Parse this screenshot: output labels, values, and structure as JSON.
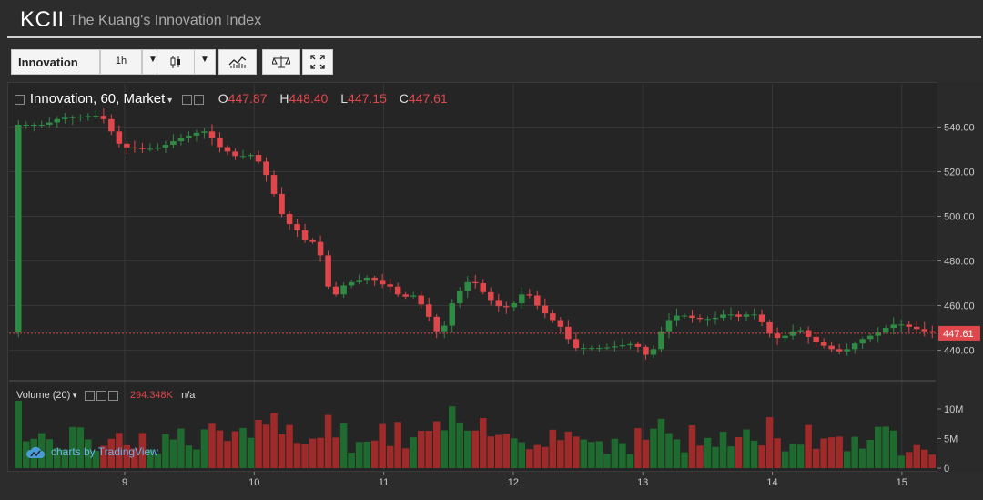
{
  "header": {
    "ticker": "KCII",
    "title": "The Kuang's Innovation Index"
  },
  "toolbar": {
    "symbol": "Innovation",
    "interval": "1h",
    "icons": [
      "candlestick-icon",
      "chevron-down-icon",
      "indicators-icon",
      "compare-icon",
      "fullscreen-icon"
    ]
  },
  "legend": {
    "series": "Innovation, 60, Market",
    "open_label": "O",
    "open": "447.87",
    "high_label": "H",
    "high": "448.40",
    "low_label": "L",
    "low": "447.15",
    "close_label": "C",
    "close": "447.61"
  },
  "volume_legend": {
    "name": "Volume (20)",
    "value": "294.348K",
    "extra": "n/a"
  },
  "branding": {
    "text": "charts by TradingView"
  },
  "colors": {
    "up": "#2e8b44",
    "down": "#e0474c",
    "vol_up": "#1f6b2f",
    "vol_down": "#9e2a2a",
    "background": "#252525"
  },
  "chart_data": {
    "type": "candlestick",
    "price_axis": {
      "ticks": [
        "440.00",
        "460.00",
        "480.00",
        "500.00",
        "520.00",
        "540.00"
      ],
      "ylim": [
        428,
        552
      ],
      "last_label": "447.61"
    },
    "volume_axis": {
      "ticks": [
        "0",
        "5M",
        "10M"
      ],
      "ylim": [
        0,
        12000000
      ]
    },
    "time_axis": {
      "ticks": [
        "9",
        "10",
        "11",
        "12",
        "13",
        "14",
        "15"
      ]
    },
    "last_price": 447.61,
    "series": [
      {
        "name": "price",
        "trend": [
          [
            0,
            541
          ],
          [
            2,
            541
          ],
          [
            4,
            541
          ],
          [
            5,
            543
          ],
          [
            6,
            544
          ],
          [
            10,
            545
          ],
          [
            11,
            545
          ],
          [
            12,
            542
          ],
          [
            13,
            534
          ],
          [
            14,
            531
          ],
          [
            17,
            530
          ],
          [
            19,
            531
          ],
          [
            20,
            533
          ],
          [
            24,
            538
          ],
          [
            25,
            538
          ],
          [
            26,
            532
          ],
          [
            28,
            528
          ],
          [
            29,
            526
          ],
          [
            30,
            528
          ],
          [
            31,
            527
          ],
          [
            32,
            522
          ],
          [
            33,
            515
          ],
          [
            34,
            505
          ],
          [
            35,
            497
          ],
          [
            36,
            496
          ],
          [
            38,
            487
          ],
          [
            39,
            490
          ],
          [
            40,
            475
          ],
          [
            41,
            462
          ],
          [
            42,
            468
          ],
          [
            43,
            470
          ],
          [
            44,
            471
          ],
          [
            46,
            473
          ],
          [
            47,
            470
          ],
          [
            49,
            468
          ],
          [
            50,
            462
          ],
          [
            51,
            466
          ],
          [
            52,
            463
          ],
          [
            53,
            458
          ],
          [
            54,
            452
          ],
          [
            55,
            445
          ],
          [
            56,
            457
          ],
          [
            57,
            465
          ],
          [
            58,
            468
          ],
          [
            59,
            473
          ],
          [
            60,
            467
          ],
          [
            61,
            465
          ],
          [
            62,
            460
          ],
          [
            64,
            459
          ],
          [
            65,
            463
          ],
          [
            66,
            467
          ],
          [
            67,
            462
          ],
          [
            68,
            458
          ],
          [
            69,
            455
          ],
          [
            70,
            452
          ],
          [
            71,
            449
          ],
          [
            72,
            441
          ],
          [
            74,
            441
          ],
          [
            76,
            441
          ],
          [
            78,
            442
          ],
          [
            80,
            443
          ],
          [
            81,
            440
          ],
          [
            82,
            436
          ],
          [
            83,
            445
          ],
          [
            84,
            452
          ],
          [
            85,
            455
          ],
          [
            86,
            456
          ],
          [
            88,
            454
          ],
          [
            90,
            454
          ],
          [
            91,
            455
          ],
          [
            92,
            457
          ],
          [
            93,
            455
          ],
          [
            94,
            455
          ],
          [
            95,
            457
          ],
          [
            96,
            455
          ],
          [
            97,
            450
          ],
          [
            98,
            445
          ],
          [
            100,
            447
          ],
          [
            101,
            450
          ],
          [
            102,
            448
          ],
          [
            103,
            444
          ],
          [
            104,
            443
          ],
          [
            105,
            441
          ],
          [
            106,
            440
          ],
          [
            107,
            439
          ],
          [
            108,
            442
          ],
          [
            109,
            444
          ],
          [
            110,
            446
          ],
          [
            111,
            447
          ],
          [
            112,
            449
          ],
          [
            113,
            451
          ],
          [
            114,
            452
          ],
          [
            115,
            451
          ],
          [
            116,
            450
          ],
          [
            117,
            449
          ],
          [
            118,
            448
          ]
        ]
      }
    ]
  }
}
